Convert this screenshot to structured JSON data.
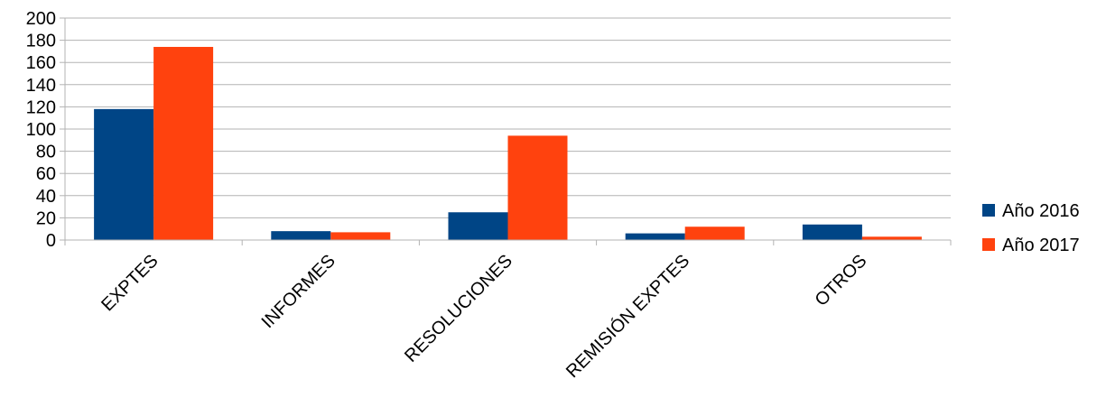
{
  "chart_data": {
    "type": "bar",
    "categories": [
      "EXPTES",
      "INFORMES",
      "RESOLUCIONES",
      "REMISIÓN EXPTES",
      "OTROS"
    ],
    "series": [
      {
        "name": "Año 2016",
        "color": "#004586",
        "values": [
          118,
          8,
          25,
          6,
          14
        ]
      },
      {
        "name": "Año 2017",
        "color": "#ff420e",
        "values": [
          174,
          7,
          94,
          12,
          3
        ]
      }
    ],
    "ylim": [
      0,
      200
    ],
    "ytick_step": 20,
    "yticks": [
      "0",
      "20",
      "40",
      "60",
      "80",
      "100",
      "120",
      "140",
      "160",
      "180",
      "200"
    ],
    "grid": true,
    "legend_position": "right",
    "title": "",
    "xlabel": "",
    "ylabel": ""
  }
}
